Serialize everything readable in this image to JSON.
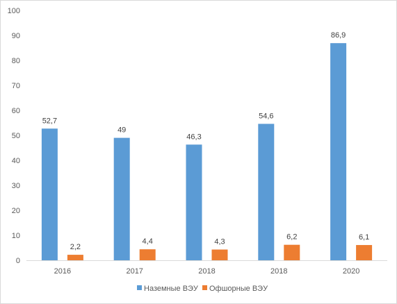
{
  "chart_data": {
    "type": "bar",
    "categories": [
      "2016",
      "2017",
      "2018",
      "2018",
      "2020"
    ],
    "series": [
      {
        "name": "Наземные ВЭУ",
        "values": [
          52.7,
          49,
          46.3,
          54.6,
          86.9
        ],
        "labels": [
          "52,7",
          "49",
          "46,3",
          "54,6",
          "86,9"
        ],
        "color": "#5b9bd5"
      },
      {
        "name": "Офшорные ВЭУ",
        "values": [
          2.2,
          4.4,
          4.3,
          6.2,
          6.1
        ],
        "labels": [
          "2,2",
          "4,4",
          "4,3",
          "6,2",
          "6,1"
        ],
        "color": "#ed7d31"
      }
    ],
    "ylim": [
      0,
      100
    ],
    "yticks": [
      0,
      10,
      20,
      30,
      40,
      50,
      60,
      70,
      80,
      90,
      100
    ],
    "grid": false,
    "legend_position": "bottom",
    "title": "",
    "xlabel": "",
    "ylabel": ""
  }
}
